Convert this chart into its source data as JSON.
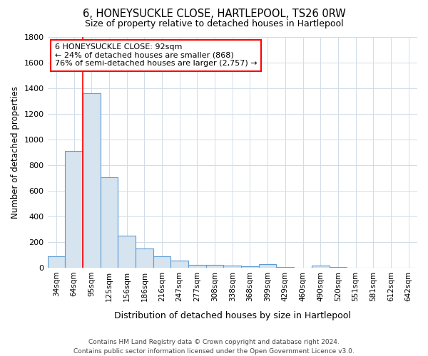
{
  "title": "6, HONEYSUCKLE CLOSE, HARTLEPOOL, TS26 0RW",
  "subtitle": "Size of property relative to detached houses in Hartlepool",
  "xlabel": "Distribution of detached houses by size in Hartlepool",
  "ylabel": "Number of detached properties",
  "categories": [
    "34sqm",
    "64sqm",
    "95sqm",
    "125sqm",
    "156sqm",
    "186sqm",
    "216sqm",
    "247sqm",
    "277sqm",
    "308sqm",
    "338sqm",
    "368sqm",
    "399sqm",
    "429sqm",
    "460sqm",
    "490sqm",
    "520sqm",
    "551sqm",
    "581sqm",
    "612sqm",
    "642sqm"
  ],
  "values": [
    90,
    910,
    1360,
    705,
    250,
    148,
    90,
    55,
    25,
    25,
    15,
    10,
    30,
    5,
    0,
    20,
    5,
    0,
    0,
    0,
    0
  ],
  "bar_color": "#d6e4f0",
  "bar_edge_color": "#5b9bd5",
  "red_line_index": 2,
  "annotation_line1": "6 HONEYSUCKLE CLOSE: 92sqm",
  "annotation_line2": "← 24% of detached houses are smaller (868)",
  "annotation_line3": "76% of semi-detached houses are larger (2,757) →",
  "annotation_box_color": "#ffffff",
  "annotation_box_edge": "#cc0000",
  "ylim": [
    0,
    1800
  ],
  "yticks": [
    0,
    200,
    400,
    600,
    800,
    1000,
    1200,
    1400,
    1600,
    1800
  ],
  "footer": "Contains HM Land Registry data © Crown copyright and database right 2024.\nContains public sector information licensed under the Open Government Licence v3.0.",
  "bg_color": "#ffffff",
  "grid_color": "#d0dce8"
}
